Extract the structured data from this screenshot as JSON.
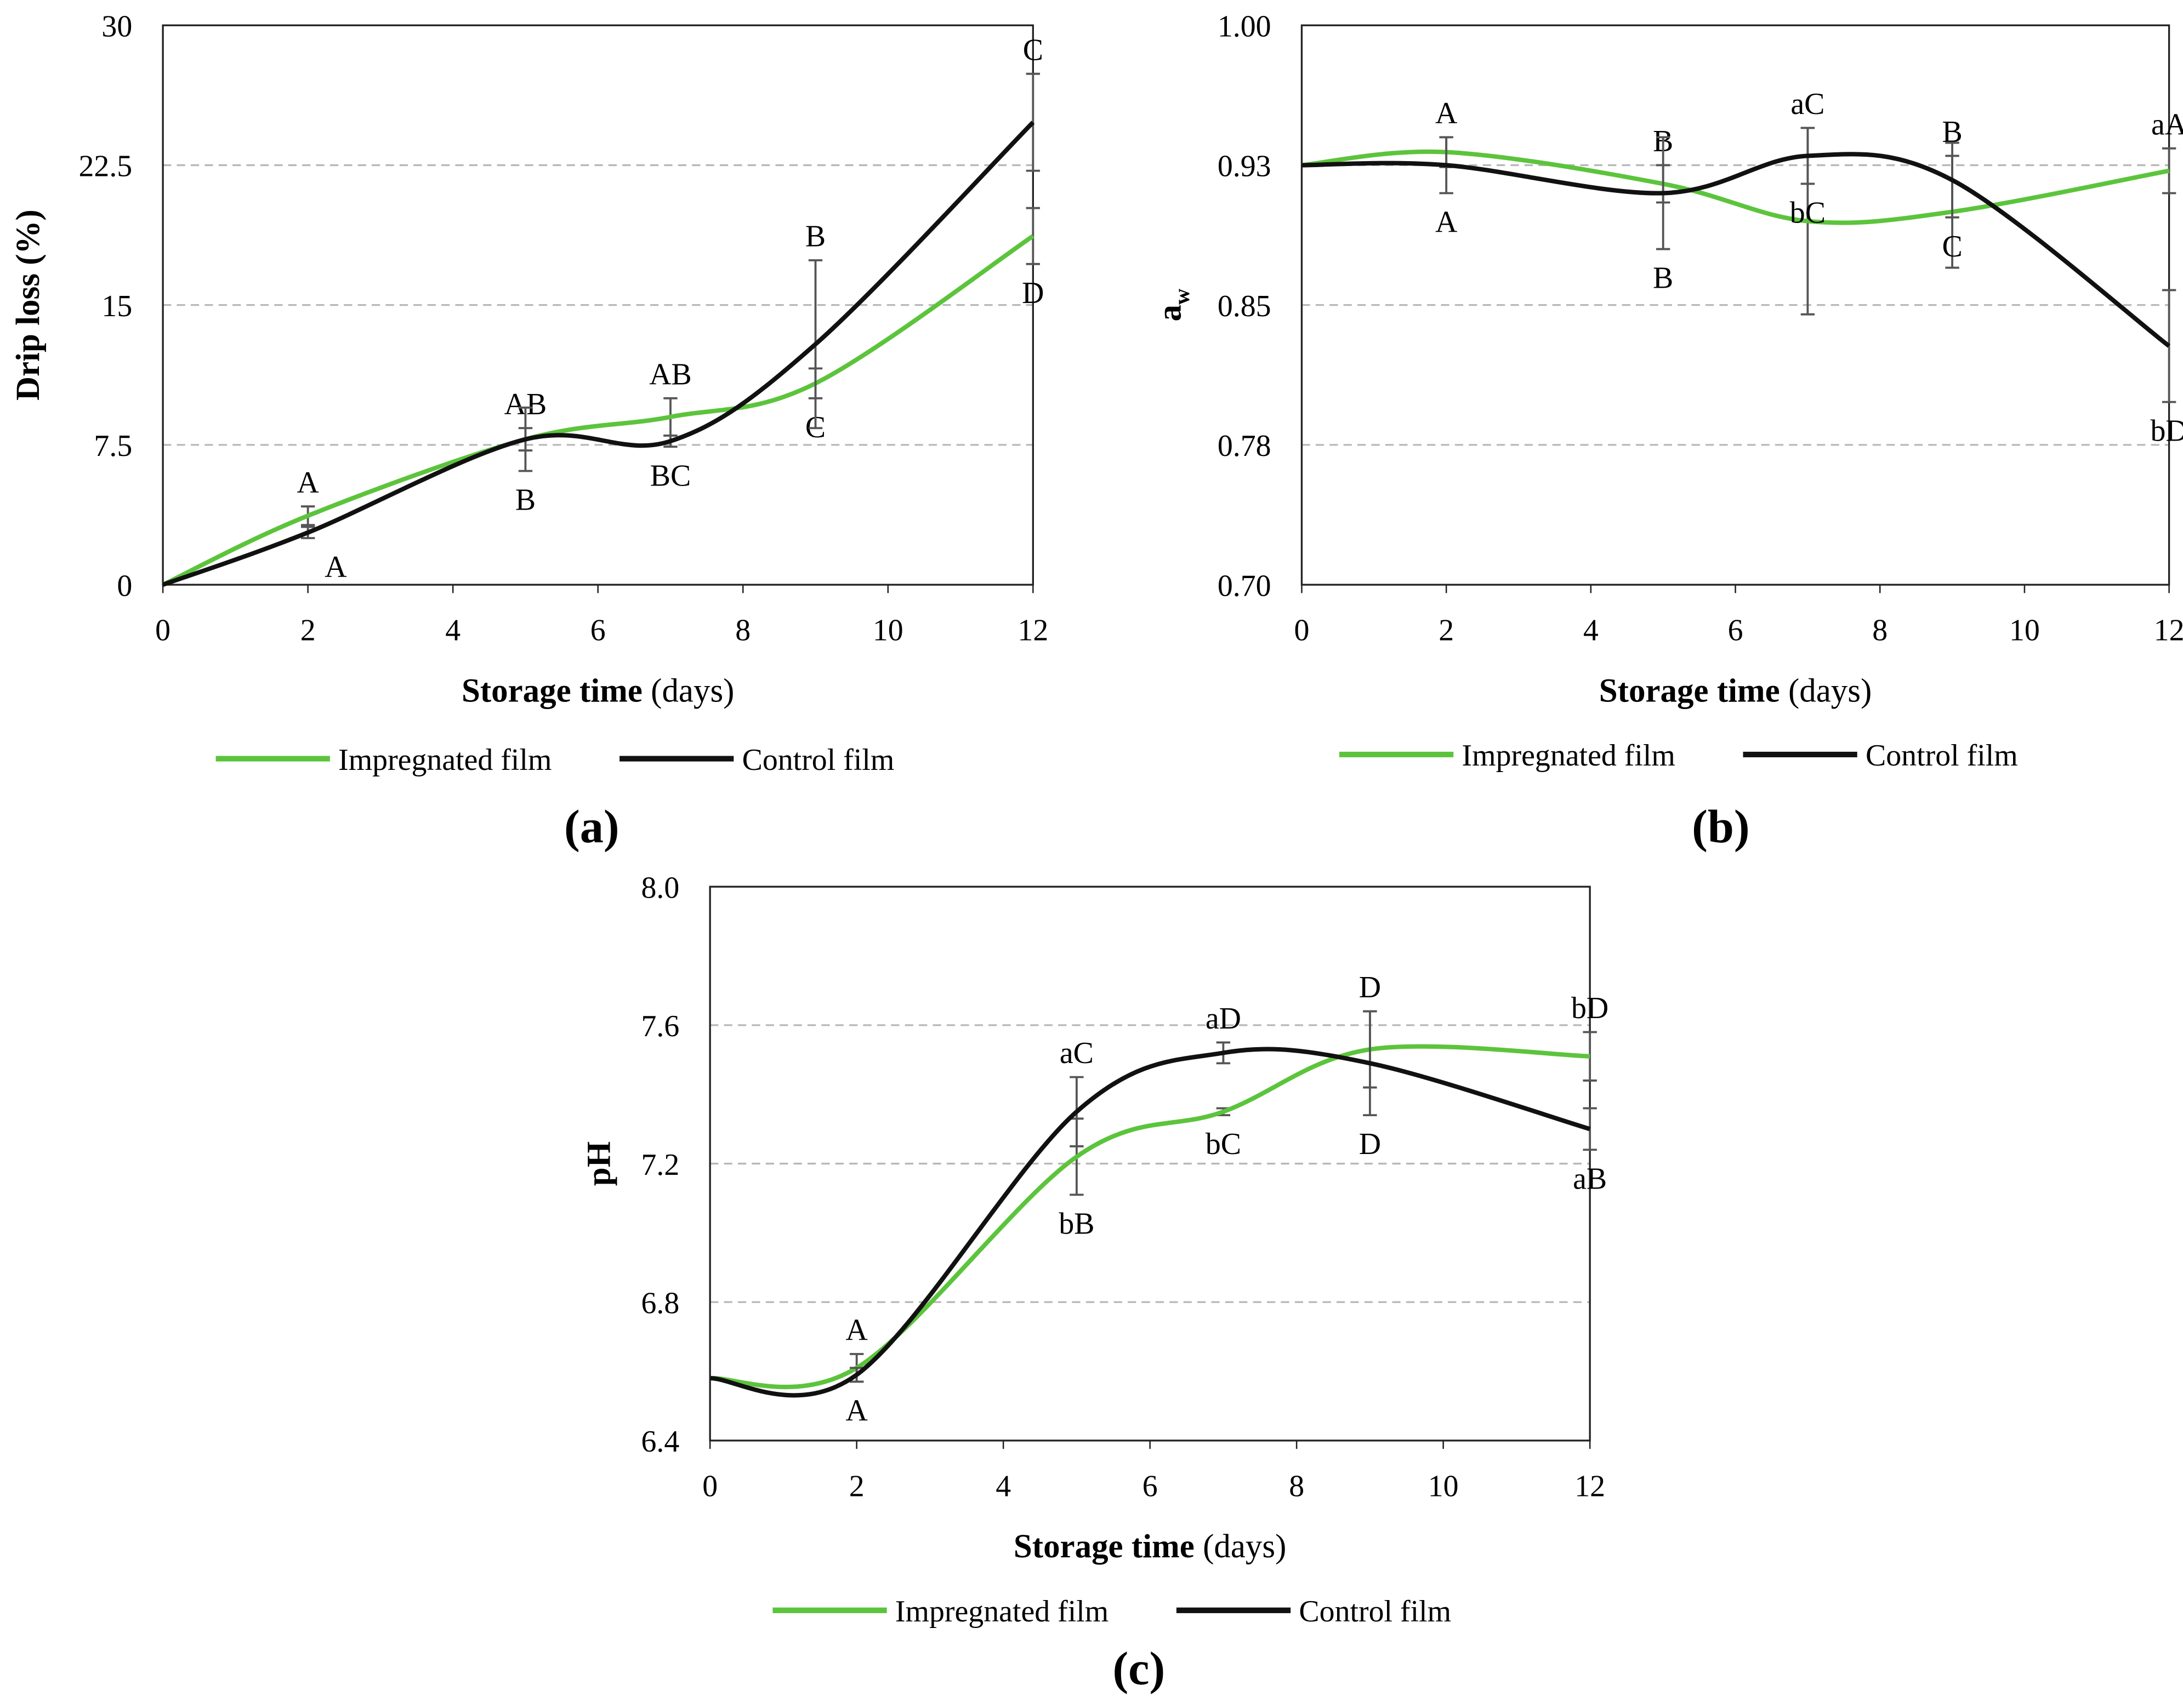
{
  "colors": {
    "impregnated": "#5cc43c",
    "control": "#111111",
    "grid": "#b8b8b8",
    "errorbar": "#555555"
  },
  "chart_data": [
    {
      "type": "line",
      "panel_label": "(a)",
      "xlabel_bold": "Storage time",
      "xlabel_rest": " (days)",
      "ylabel": "Drip loss (%)",
      "xlim": [
        0,
        12
      ],
      "ylim": [
        0,
        30
      ],
      "xticks": [
        "0",
        "2",
        "4",
        "6",
        "8",
        "10",
        "12"
      ],
      "xtick_values": [
        0,
        2,
        4,
        6,
        8,
        10,
        12
      ],
      "yticks": [
        "0",
        "7.5",
        "15",
        "22.5",
        "30"
      ],
      "ytick_values": [
        0,
        7.5,
        15,
        22.5,
        30
      ],
      "grid_values": [
        7.5,
        15,
        22.5
      ],
      "legend": [
        "Impregnated film",
        "Control film"
      ],
      "legend_placement": "bottom",
      "series": [
        {
          "name": "Impregnated film",
          "x": [
            0,
            2,
            5,
            7,
            9,
            12
          ],
          "y": [
            0,
            3.7,
            7.8,
            9.0,
            10.8,
            18.7
          ],
          "err": [
            0,
            0.5,
            0.6,
            1.0,
            0.8,
            1.5
          ],
          "labels": [
            "",
            "A",
            "AB",
            "AB",
            "C",
            "D"
          ],
          "label_pos": [
            "",
            "above",
            "above",
            "above",
            "below",
            "below"
          ]
        },
        {
          "name": "Control film",
          "x": [
            0,
            2,
            5,
            7,
            9,
            12
          ],
          "y": [
            0,
            2.8,
            7.8,
            7.7,
            12.9,
            24.8
          ],
          "err": [
            0,
            0.3,
            1.7,
            0.3,
            4.5,
            2.6
          ],
          "labels": [
            "",
            "A",
            "B",
            "BC",
            "B",
            "C"
          ],
          "label_pos": [
            "",
            "below",
            "below",
            "below",
            "above",
            "above"
          ]
        }
      ]
    },
    {
      "type": "line",
      "panel_label": "(b)",
      "xlabel_bold": "Storage time",
      "xlabel_rest": " (days)",
      "ylabel": "a",
      "ylabel_sub": "w",
      "xlim": [
        0,
        12
      ],
      "ylim": [
        0.7,
        1.0
      ],
      "xticks": [
        "0",
        "2",
        "4",
        "6",
        "8",
        "10",
        "12"
      ],
      "xtick_values": [
        0,
        2,
        4,
        6,
        8,
        10,
        12
      ],
      "yticks": [
        "0.70",
        "0.78",
        "0.85",
        "0.93",
        "1.00"
      ],
      "ytick_values": [
        0.7,
        0.775,
        0.85,
        0.925,
        1.0
      ],
      "grid_values": [
        0.775,
        0.85,
        0.925
      ],
      "legend": [
        "Impregnated film",
        "Control film"
      ],
      "legend_placement": "bottom",
      "series": [
        {
          "name": "Impregnated film",
          "x": [
            0,
            2,
            5,
            7,
            9,
            12
          ],
          "y": [
            0.925,
            0.932,
            0.915,
            0.895,
            0.9,
            0.922
          ],
          "err": [
            0,
            0.008,
            0.01,
            0.05,
            0.03,
            0.012
          ],
          "labels": [
            "",
            "A",
            "B",
            "aC",
            "B",
            "aA"
          ],
          "label_pos": [
            "",
            "above",
            "above",
            "above",
            "above",
            "above"
          ]
        },
        {
          "name": "Control film",
          "x": [
            0,
            2,
            5,
            7,
            9,
            12
          ],
          "y": [
            0.925,
            0.925,
            0.91,
            0.93,
            0.917,
            0.828
          ],
          "err": [
            0,
            0.015,
            0.03,
            0.015,
            0.02,
            0.03
          ],
          "labels": [
            "",
            "A",
            "B",
            "bC",
            "C",
            "bD"
          ],
          "label_pos": [
            "",
            "below",
            "below",
            "below",
            "below",
            "below"
          ]
        }
      ]
    },
    {
      "type": "line",
      "panel_label": "(c)",
      "xlabel_bold": "Storage time",
      "xlabel_rest": " (days)",
      "ylabel": "pH",
      "xlim": [
        0,
        12
      ],
      "ylim": [
        6.4,
        8.0
      ],
      "xticks": [
        "0",
        "2",
        "4",
        "6",
        "8",
        "10",
        "12"
      ],
      "xtick_values": [
        0,
        2,
        4,
        6,
        8,
        10,
        12
      ],
      "yticks": [
        "6.4",
        "6.8",
        "7.2",
        "7.6",
        "8.0"
      ],
      "ytick_values": [
        6.4,
        6.8,
        7.2,
        7.6,
        8.0
      ],
      "grid_values": [
        6.8,
        7.2,
        7.6
      ],
      "legend": [
        "Impregnated film",
        "Control film"
      ],
      "legend_placement": "bottom",
      "series": [
        {
          "name": "Impregnated film",
          "x": [
            0,
            2,
            5,
            7,
            9,
            12
          ],
          "y": [
            6.58,
            6.61,
            7.22,
            7.35,
            7.53,
            7.51
          ],
          "err": [
            0,
            0.04,
            0.11,
            0.01,
            0.11,
            0.07
          ],
          "labels": [
            "",
            "A",
            "bB",
            "bC",
            "D",
            "bD"
          ],
          "label_pos": [
            "",
            "above",
            "below",
            "below",
            "above",
            "above"
          ]
        },
        {
          "name": "Control film",
          "x": [
            0,
            2,
            5,
            7,
            9,
            12
          ],
          "y": [
            6.58,
            6.59,
            7.35,
            7.52,
            7.49,
            7.3
          ],
          "err": [
            0,
            0.02,
            0.1,
            0.03,
            0.15,
            0.06
          ],
          "labels": [
            "",
            "A",
            "aC",
            "aD",
            "D",
            "aB"
          ],
          "label_pos": [
            "",
            "below",
            "above",
            "above",
            "below",
            "below"
          ]
        }
      ]
    }
  ]
}
